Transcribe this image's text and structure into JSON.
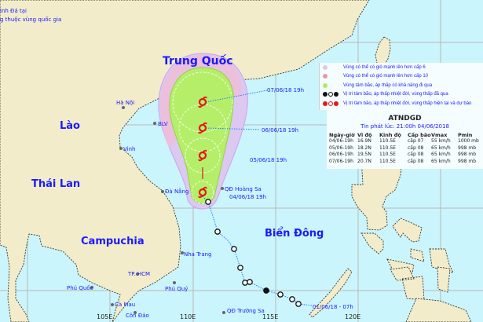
{
  "map": {
    "colors": {
      "land": "#f2ecca",
      "sea": "#cbf5fc",
      "cone_outer": "#dcc8f0",
      "cone_pink": "#ecbfdc",
      "cone_center": "#b5ef6a",
      "storm_marker": "#e8141a",
      "track": "#1a7fff"
    },
    "corner_note": [
      "inh Đá tại",
      "g thuộc vùng quốc gia"
    ],
    "countries": {
      "china": "Trung Quốc",
      "laos": "Lào",
      "thailand": "Thái Lan",
      "cambodia": "Campuchia",
      "sea": "Biển Đông"
    },
    "places": {
      "hanoi": "Hà Nội",
      "blv": "BLV",
      "vinh": "Vinh",
      "danang": "Đà Nẵng",
      "hoangsa": "QĐ Hoàng Sa",
      "nhatrang": "Nha Trang",
      "hcm": "TP. HCM",
      "phuquy": "Phú Quý",
      "phuquoc": "Phú Quốc",
      "camau": "Cà Mau",
      "condao": "Côn Đảo",
      "truongsa": "QĐ Trường Sa"
    },
    "longitudes": [
      "105E",
      "110E",
      "115E",
      "120E"
    ],
    "forecast_labels": [
      "04/06/18 19h",
      "05/06/18 19h",
      "06/06/18 19h",
      "07/06/18 19h"
    ],
    "track_start_label": "01/06/18 - 07h"
  },
  "legend": {
    "items": [
      {
        "icon": "purple-circle",
        "label": "Vùng có thể có gió mạnh lên hơn cấp 6"
      },
      {
        "icon": "pink-circle",
        "label": "Vùng có thể có gió mạnh lên hơn cấp 10"
      },
      {
        "icon": "green-circle",
        "label": "Vùng tâm bão, áp thấp có khả năng đi qua"
      },
      {
        "icon": "black-storm-symbols",
        "label": "Vị trí tâm bão, áp thấp nhiệt đới, vùng thấp đã qua"
      },
      {
        "icon": "red-storm-symbols",
        "label": "Vị trí tâm bão, áp thấp nhiệt đới, vùng thấp hiện tại và dự báo"
      }
    ]
  },
  "forecast_table": {
    "title": "ATNDGD",
    "issued": "Tin phát lúc: 21:00h 04/06/2018",
    "headers": [
      "Ngày-giờ",
      "Vĩ độ",
      "Kinh độ",
      "Cấp bão",
      "Vmax",
      "Pmin"
    ],
    "rows": [
      [
        "04/06-19h",
        "16.9N",
        "110.5E",
        "cấp 07",
        "55 km/h",
        "1000 mb"
      ],
      [
        "05/06-19h",
        "18.2N",
        "110.5E",
        "cấp 08",
        "65 km/h",
        "998 mb"
      ],
      [
        "06/06-19h",
        "19.5N",
        "110.5E",
        "cấp 08",
        "65 km/h",
        "998 mb"
      ],
      [
        "07/06-19h",
        "20.7N",
        "110.5E",
        "cấp 08",
        "65 km/h",
        "998 mb"
      ]
    ]
  }
}
